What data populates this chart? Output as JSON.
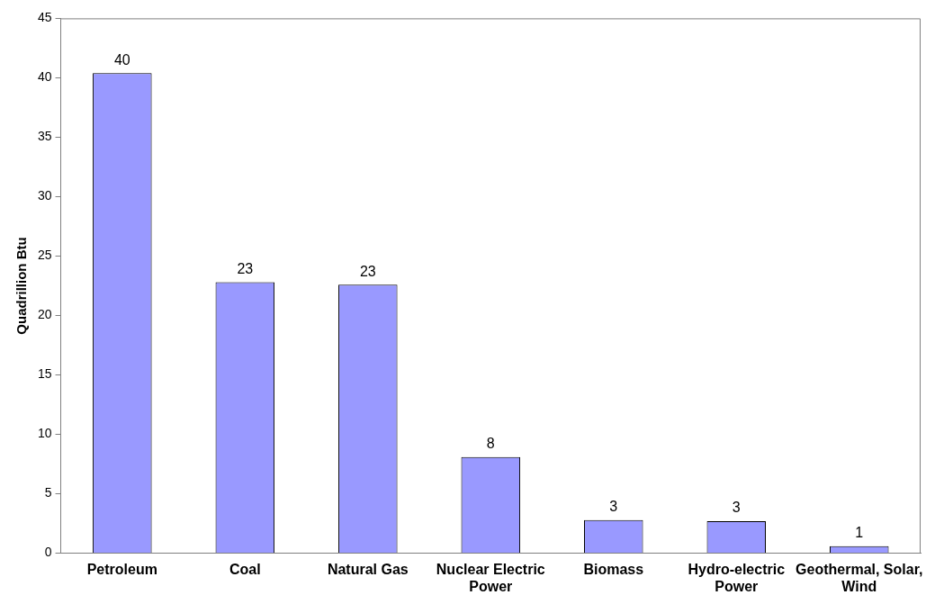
{
  "chart_data": {
    "type": "bar",
    "ylabel": "Quadrillion Btu",
    "categories": [
      "Petroleum",
      "Coal",
      "Natural Gas",
      "Nuclear Electric Power",
      "Biomass",
      "Hydro-electric Power",
      "Geothermal, Solar, Wind"
    ],
    "values": [
      40.4,
      22.8,
      22.6,
      8.1,
      2.8,
      2.7,
      0.6
    ],
    "value_labels": [
      "40",
      "23",
      "23",
      "8",
      "3",
      "3",
      "1"
    ],
    "color": "#9999ff",
    "ylim": [
      0,
      45
    ],
    "yticks": [
      0,
      5,
      10,
      15,
      20,
      25,
      30,
      35,
      40,
      45
    ],
    "grid": false,
    "legend": false
  }
}
